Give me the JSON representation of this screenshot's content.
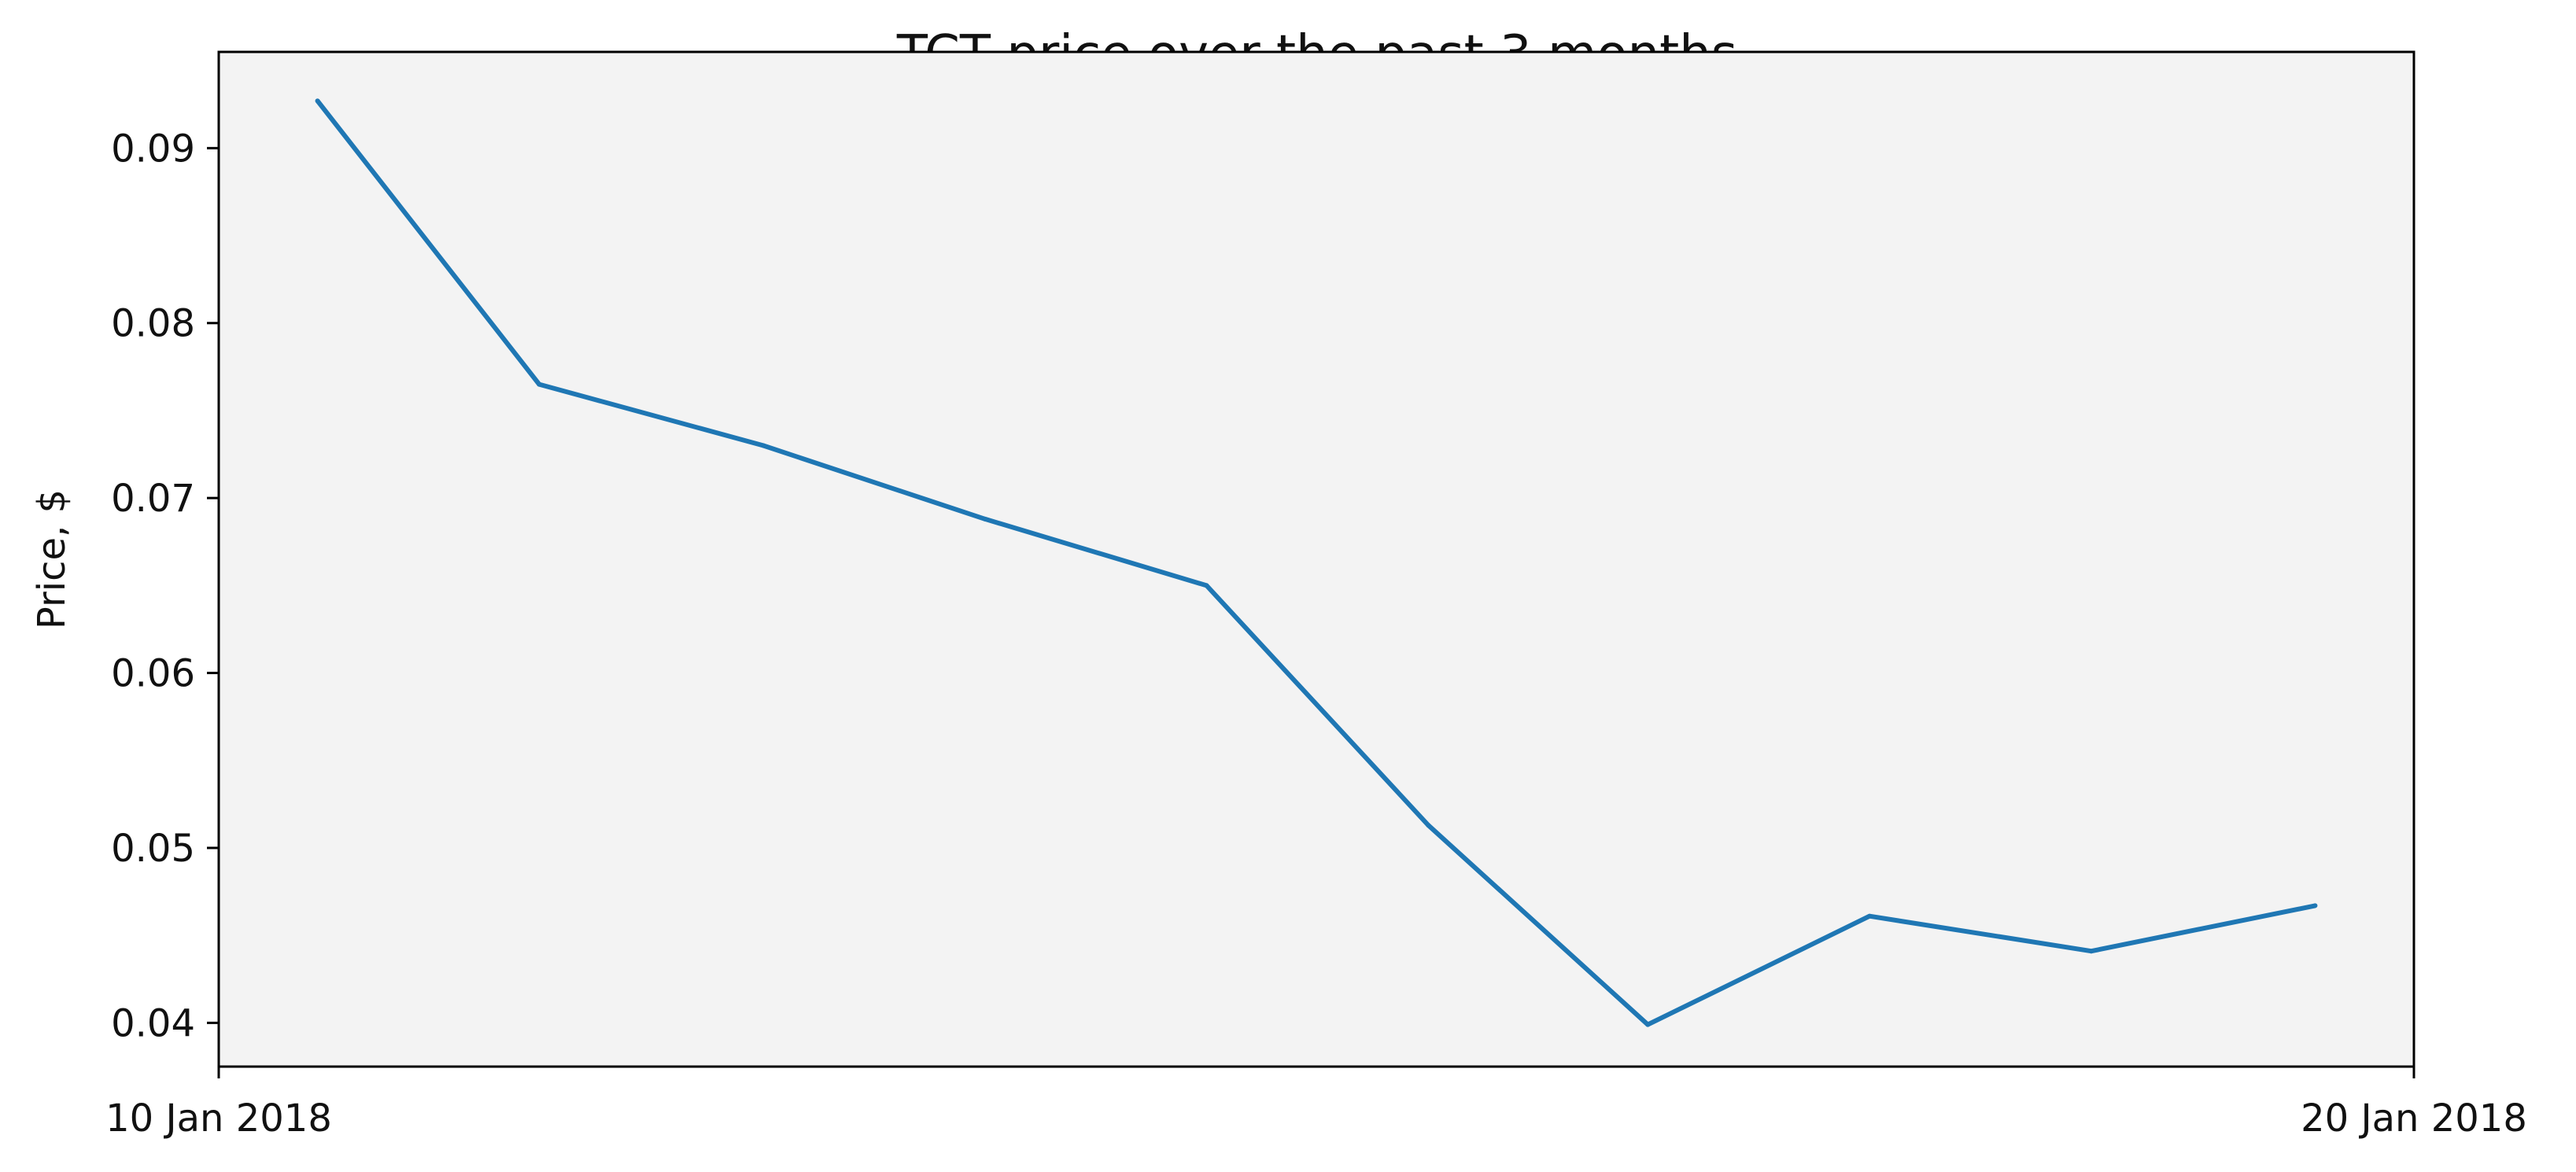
{
  "chart_data": {
    "type": "line",
    "title": "TCT price over the past 3 months",
    "xlabel": "",
    "ylabel": "Price, $",
    "x_tick_labels": [
      "10 Jan 2018",
      "20 Jan 2018"
    ],
    "y_ticks": [
      0.04,
      0.05,
      0.06,
      0.07,
      0.08,
      0.09
    ],
    "y_tick_labels": [
      "0.04",
      "0.05",
      "0.06",
      "0.07",
      "0.08",
      "0.09"
    ],
    "ylim": [
      0.0375,
      0.0955
    ],
    "xlim": [
      0,
      10
    ],
    "grid": false,
    "background": "#f3f3f3",
    "line_color": "#1f77b4",
    "series": [
      {
        "name": "TCT",
        "x": [
          0.45,
          1.46,
          2.48,
          3.49,
          4.5,
          5.51,
          6.51,
          7.52,
          8.53,
          9.55
        ],
        "values": [
          0.0927,
          0.0765,
          0.073,
          0.0688,
          0.065,
          0.0513,
          0.0399,
          0.0461,
          0.0441,
          0.0467
        ]
      }
    ]
  }
}
